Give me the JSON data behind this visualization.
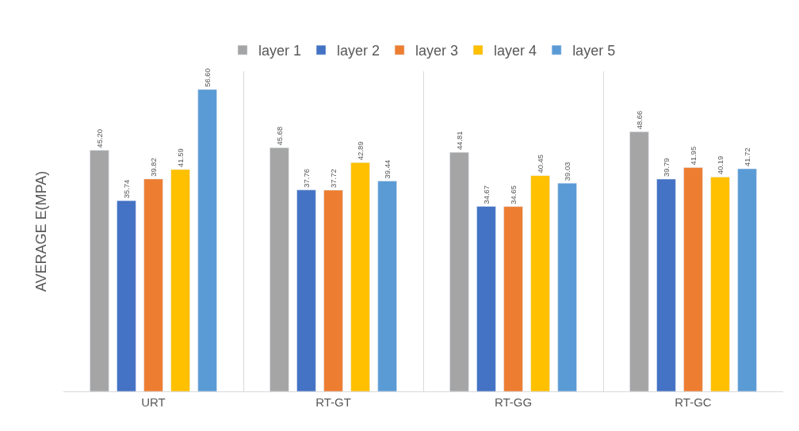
{
  "chart_data": {
    "type": "bar",
    "ylabel": "AVERAGE E(MPA)",
    "categories": [
      "URT",
      "RT-GT",
      "RT-GG",
      "RT-GC"
    ],
    "series": [
      {
        "name": "layer 1",
        "color": "#a5a5a5",
        "values": [
          45.2,
          45.68,
          44.81,
          48.66
        ],
        "value_labels": [
          "45.20",
          "45.68",
          "44.81",
          "48.66"
        ]
      },
      {
        "name": "layer 2",
        "color": "#4472c4",
        "values": [
          35.74,
          37.76,
          34.67,
          39.79
        ],
        "value_labels": [
          "35.74",
          "37.76",
          "34.67",
          "39.79"
        ]
      },
      {
        "name": "layer 3",
        "color": "#ed7d31",
        "values": [
          39.82,
          37.72,
          34.65,
          41.95
        ],
        "value_labels": [
          "39.82",
          "37.72",
          "34.65",
          "41.95"
        ]
      },
      {
        "name": "layer 4",
        "color": "#ffc000",
        "values": [
          41.59,
          42.89,
          40.45,
          40.19
        ],
        "value_labels": [
          "41.59",
          "42.89",
          "40.45",
          "40.19"
        ]
      },
      {
        "name": "layer 5",
        "color": "#5b9bd5",
        "values": [
          56.6,
          39.44,
          39.03,
          41.72
        ],
        "value_labels": [
          "56.60",
          "39.44",
          "39.03",
          "41.72"
        ]
      }
    ],
    "ylim": [
      0,
      60
    ],
    "tick_labels": "x",
    "grid": "x",
    "legend": "top"
  }
}
